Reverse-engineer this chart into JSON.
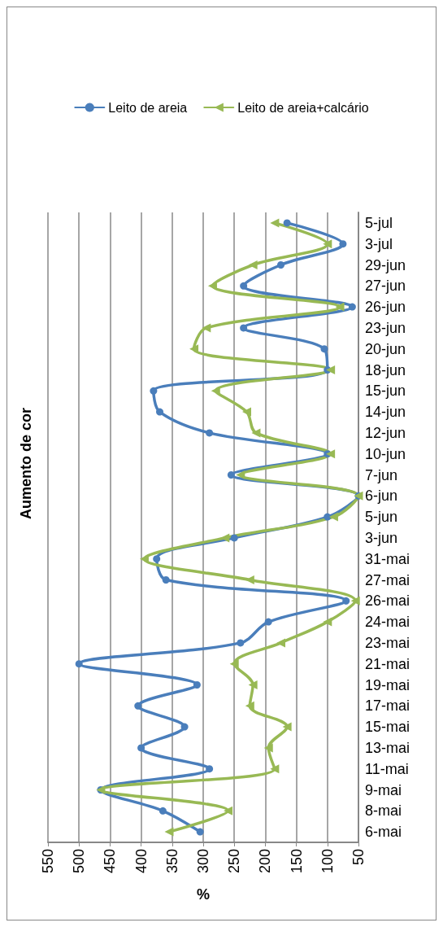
{
  "chart_data": {
    "type": "line",
    "title": "Aumento de cor",
    "xlabel": "%",
    "categories": [
      "5-jul",
      "3-jul",
      "29-jun",
      "27-jun",
      "26-jun",
      "23-jun",
      "20-jun",
      "18-jun",
      "15-jun",
      "14-jun",
      "12-jun",
      "10-jun",
      "7-jun",
      "6-jun",
      "5-jun",
      "3-jun",
      "31-mai",
      "27-mai",
      "26-mai",
      "24-mai",
      "23-mai",
      "21-mai",
      "19-mai",
      "17-mai",
      "15-mai",
      "13-mai",
      "11-mai",
      "9-mai",
      "8-mai",
      "6-mai"
    ],
    "series": [
      {
        "name": "Leito de areia",
        "color": "#4a7ebb",
        "marker": "circle",
        "values": [
          165,
          75,
          175,
          235,
          60,
          235,
          105,
          100,
          380,
          370,
          290,
          100,
          255,
          50,
          100,
          250,
          375,
          360,
          70,
          195,
          240,
          500,
          310,
          405,
          330,
          400,
          290,
          465,
          365,
          305
        ]
      },
      {
        "name": "Leito de areia+calcário",
        "color": "#98b954",
        "marker": "triangle",
        "values": [
          185,
          100,
          220,
          285,
          80,
          295,
          315,
          95,
          280,
          230,
          215,
          95,
          240,
          50,
          90,
          265,
          395,
          225,
          55,
          100,
          175,
          250,
          220,
          225,
          165,
          195,
          185,
          465,
          260,
          355
        ]
      }
    ],
    "orientation": "horizontal",
    "xlim": [
      550,
      50
    ],
    "xticks": [
      550,
      500,
      450,
      400,
      350,
      300,
      250,
      200,
      150,
      100,
      50
    ],
    "grid": "x",
    "legend": "top"
  }
}
